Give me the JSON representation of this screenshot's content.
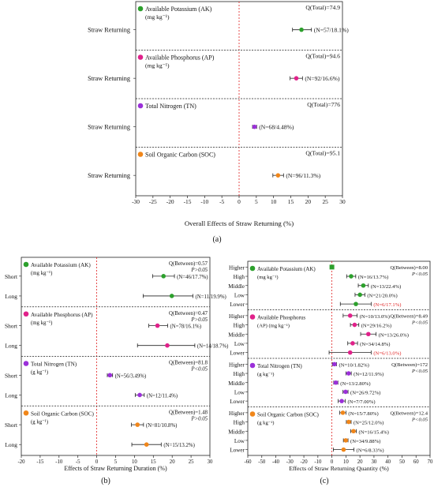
{
  "panel_labels": [
    "(a)",
    "(b)",
    "(c)"
  ],
  "chart_data": [
    {
      "id": "a",
      "type": "forest",
      "xlabel": "Overall Effects of Straw Returning (%)",
      "xlim": [
        -30,
        30
      ],
      "xticks": [
        -30,
        -25,
        -20,
        -15,
        -10,
        -5,
        0,
        5,
        10,
        15,
        20,
        25,
        30
      ],
      "reference_line": 0,
      "groups": [
        {
          "name": "Available Potassium (AK)",
          "unit": "(mg kg⁻¹)",
          "color": "#2ca02c",
          "q": "Q(Total)=74.9",
          "p": "",
          "rows": [
            {
              "label": "Straw Returning",
              "mean": 18.1,
              "low": 15.5,
              "high": 21.0,
              "text": "(N=57/18.1%)",
              "text_color": "#111111"
            }
          ]
        },
        {
          "name": "Available Phosphorus (AP)",
          "unit": "(mg kg⁻¹)",
          "color": "#e0218a",
          "q": "Q(Total)=94.6",
          "p": "",
          "rows": [
            {
              "label": "Straw Returning",
              "mean": 16.6,
              "low": 14.8,
              "high": 18.4,
              "text": "(N=92/16.6%)",
              "text_color": "#111111"
            }
          ]
        },
        {
          "name": "Total Nitrogen (TN)",
          "unit": "",
          "color": "#9b30d9",
          "q": "Q(Total)=776",
          "p": "",
          "rows": [
            {
              "label": "Straw Returning",
              "mean": 4.48,
              "low": 3.9,
              "high": 5.1,
              "text": "(N=68/4.48%)",
              "text_color": "#111111"
            }
          ]
        },
        {
          "name": "Soil Organic Carbon (SOC)",
          "unit": "",
          "color": "#f0861a",
          "q": "Q(Total)=95.1",
          "p": "",
          "rows": [
            {
              "label": "Straw Returning",
              "mean": 11.3,
              "low": 9.8,
              "high": 12.9,
              "text": "(N=96/11.3%)",
              "text_color": "#111111"
            }
          ]
        }
      ]
    },
    {
      "id": "b",
      "type": "forest",
      "xlabel": "Effects of Straw Returning Duration (%)",
      "xlim": [
        -20,
        30
      ],
      "xticks": [
        -20,
        -15,
        -10,
        -5,
        0,
        5,
        10,
        15,
        20,
        25,
        30
      ],
      "reference_line": 0,
      "groups": [
        {
          "name": "Available Potassium (AK)",
          "unit": "(mg kg⁻¹)",
          "color": "#2ca02c",
          "q": "Q(Between)=0.57",
          "p": "P>0.05",
          "rows": [
            {
              "label": "Short",
              "mean": 17.7,
              "low": 14.8,
              "high": 20.6,
              "text": "(N=46/17.7%)",
              "text_color": "#111111"
            },
            {
              "label": "Long",
              "mean": 19.9,
              "low": 12.3,
              "high": 25.5,
              "text": "(N=11/19.9%)",
              "text_color": "#111111"
            }
          ]
        },
        {
          "name": "Available Phosphorus (AP)",
          "unit": "(mg kg⁻¹)",
          "color": "#e0218a",
          "q": "Q(Between)=0.47",
          "p": "P>0.05",
          "rows": [
            {
              "label": "Short",
              "mean": 16.1,
              "low": 13.8,
              "high": 18.8,
              "text": "(N=78/16.1%)",
              "text_color": "#111111"
            },
            {
              "label": "Long",
              "mean": 18.7,
              "low": 10.8,
              "high": 26.0,
              "text": "(N=14/18.7%)",
              "text_color": "#111111"
            }
          ]
        },
        {
          "name": "Total Nitrogen (TN)",
          "unit": "(g kg⁻¹)",
          "color": "#9b30d9",
          "q": "Q(Between)=81.8",
          "p": "P<0.05",
          "rows": [
            {
              "label": "Short",
              "mean": 3.49,
              "low": 2.8,
              "high": 4.2,
              "text": "(N=56/3.49%)",
              "text_color": "#111111"
            },
            {
              "label": "Long",
              "mean": 11.4,
              "low": 10.2,
              "high": 12.6,
              "text": "(N=12/11.4%)",
              "text_color": "#111111"
            }
          ]
        },
        {
          "name": "Soil Organic Carbon (SOC)",
          "unit": "(g kg⁻¹)",
          "color": "#f0861a",
          "q": "Q(Between)=1.48",
          "p": "P>0.05",
          "rows": [
            {
              "label": "Short",
              "mean": 10.8,
              "low": 9.2,
              "high": 12.4,
              "text": "(N=81/10.8%)",
              "text_color": "#111111"
            },
            {
              "label": "Long",
              "mean": 13.2,
              "low": 9.3,
              "high": 17.1,
              "text": "(N=15/13.2%)",
              "text_color": "#111111"
            }
          ]
        }
      ]
    },
    {
      "id": "c",
      "type": "forest",
      "xlabel": "Effects of Straw Returning Quantity (%)",
      "xlim": [
        -60,
        70
      ],
      "xticks": [
        -60,
        -50,
        -40,
        -30,
        -20,
        -10,
        0,
        10,
        20,
        30,
        40,
        50,
        60,
        70
      ],
      "reference_line": 0,
      "groups": [
        {
          "name": "Available Potassium (AK)",
          "unit": "(mg kg⁻¹)",
          "color": "#2ca02c",
          "q": "Q(Between)=8.00",
          "p": "P<0.05",
          "extra_marker": {
            "value": 0,
            "shape": "square"
          },
          "rows": [
            {
              "label": "Higher",
              "mean": null,
              "low": null,
              "high": null,
              "text": "",
              "text_color": "#111111"
            },
            {
              "label": "High",
              "mean": 13.7,
              "low": 10.5,
              "high": 17.0,
              "text": "(N=16/13.7%)",
              "text_color": "#111111"
            },
            {
              "label": "Middle",
              "mean": 22.4,
              "low": 18.8,
              "high": 26.0,
              "text": "(N=13/22.4%)",
              "text_color": "#111111"
            },
            {
              "label": "Low",
              "mean": 20.0,
              "low": 16.5,
              "high": 23.5,
              "text": "(N=21/20.0%)",
              "text_color": "#111111"
            },
            {
              "label": "Lower",
              "mean": 17.1,
              "low": 6.0,
              "high": 28.0,
              "text": "(N=6/17.1%)",
              "text_color": "#e02020"
            }
          ]
        },
        {
          "name": "Available Phosphorus",
          "unit": "(AP) (mg kg⁻¹)",
          "color": "#e0218a",
          "q": "Q(Between)=8.49",
          "p": "P<0.05",
          "rows": [
            {
              "label": "Higher",
              "mean": 13.0,
              "low": 8.0,
              "high": 18.0,
              "text": "(N=10/13.0%)",
              "text_color": "#111111"
            },
            {
              "label": "High",
              "mean": 16.2,
              "low": 13.2,
              "high": 19.2,
              "text": "(N=29/16.2%)",
              "text_color": "#111111"
            },
            {
              "label": "Middle",
              "mean": 26.0,
              "low": 20.5,
              "high": 31.5,
              "text": "(N=13/26.0%)",
              "text_color": "#111111"
            },
            {
              "label": "Low",
              "mean": 14.8,
              "low": 11.3,
              "high": 18.3,
              "text": "(N=34/14.8%)",
              "text_color": "#111111"
            },
            {
              "label": "Lower",
              "mean": 13.0,
              "low": -2.0,
              "high": 28.0,
              "text": "(N=6/13.0%)",
              "text_color": "#e02020"
            }
          ]
        },
        {
          "name": "Total Nitrogen (TN)",
          "unit": "(g kg⁻¹)",
          "color": "#9b30d9",
          "q": "Q(Between)=172",
          "p": "P<0.05",
          "rows": [
            {
              "label": "Higher",
              "mean": 1.82,
              "low": 0.3,
              "high": 3.3,
              "text": "(N=10/1.82%)",
              "text_color": "#111111"
            },
            {
              "label": "High",
              "mean": 11.9,
              "low": 10.0,
              "high": 13.8,
              "text": "(N=12/11.9%)",
              "text_color": "#111111"
            },
            {
              "label": "Middle",
              "mean": 2.8,
              "low": 1.3,
              "high": 4.3,
              "text": "(N=13/2.80%)",
              "text_color": "#111111"
            },
            {
              "label": "Low",
              "mean": 9.72,
              "low": 7.9,
              "high": 11.5,
              "text": "(N=26/9.72%)",
              "text_color": "#111111"
            },
            {
              "label": "Lower",
              "mean": 7.0,
              "low": 4.5,
              "high": 9.5,
              "text": "(N=7/7.00%)",
              "text_color": "#111111"
            }
          ]
        },
        {
          "name": "Soil Organic Carbon (SOC)",
          "unit": "(g kg⁻¹)",
          "color": "#f0861a",
          "q": "Q(Between)=12.4",
          "p": "P<0.05",
          "rows": [
            {
              "label": "Higher",
              "mean": 7.8,
              "low": 5.6,
              "high": 10.0,
              "text": "(N=15/7.80%)",
              "text_color": "#111111"
            },
            {
              "label": "High",
              "mean": 12.0,
              "low": 10.3,
              "high": 13.7,
              "text": "(N=25/12.0%)",
              "text_color": "#111111"
            },
            {
              "label": "Middle",
              "mean": 15.4,
              "low": 13.4,
              "high": 17.4,
              "text": "(N=16/15.4%)",
              "text_color": "#111111"
            },
            {
              "label": "Low",
              "mean": 9.88,
              "low": 8.2,
              "high": 11.5,
              "text": "(N=34/9.88%)",
              "text_color": "#111111"
            },
            {
              "label": "Lower",
              "mean": 8.33,
              "low": 1.0,
              "high": 15.7,
              "text": "(N=6/8.33%)",
              "text_color": "#111111"
            }
          ]
        }
      ]
    }
  ]
}
